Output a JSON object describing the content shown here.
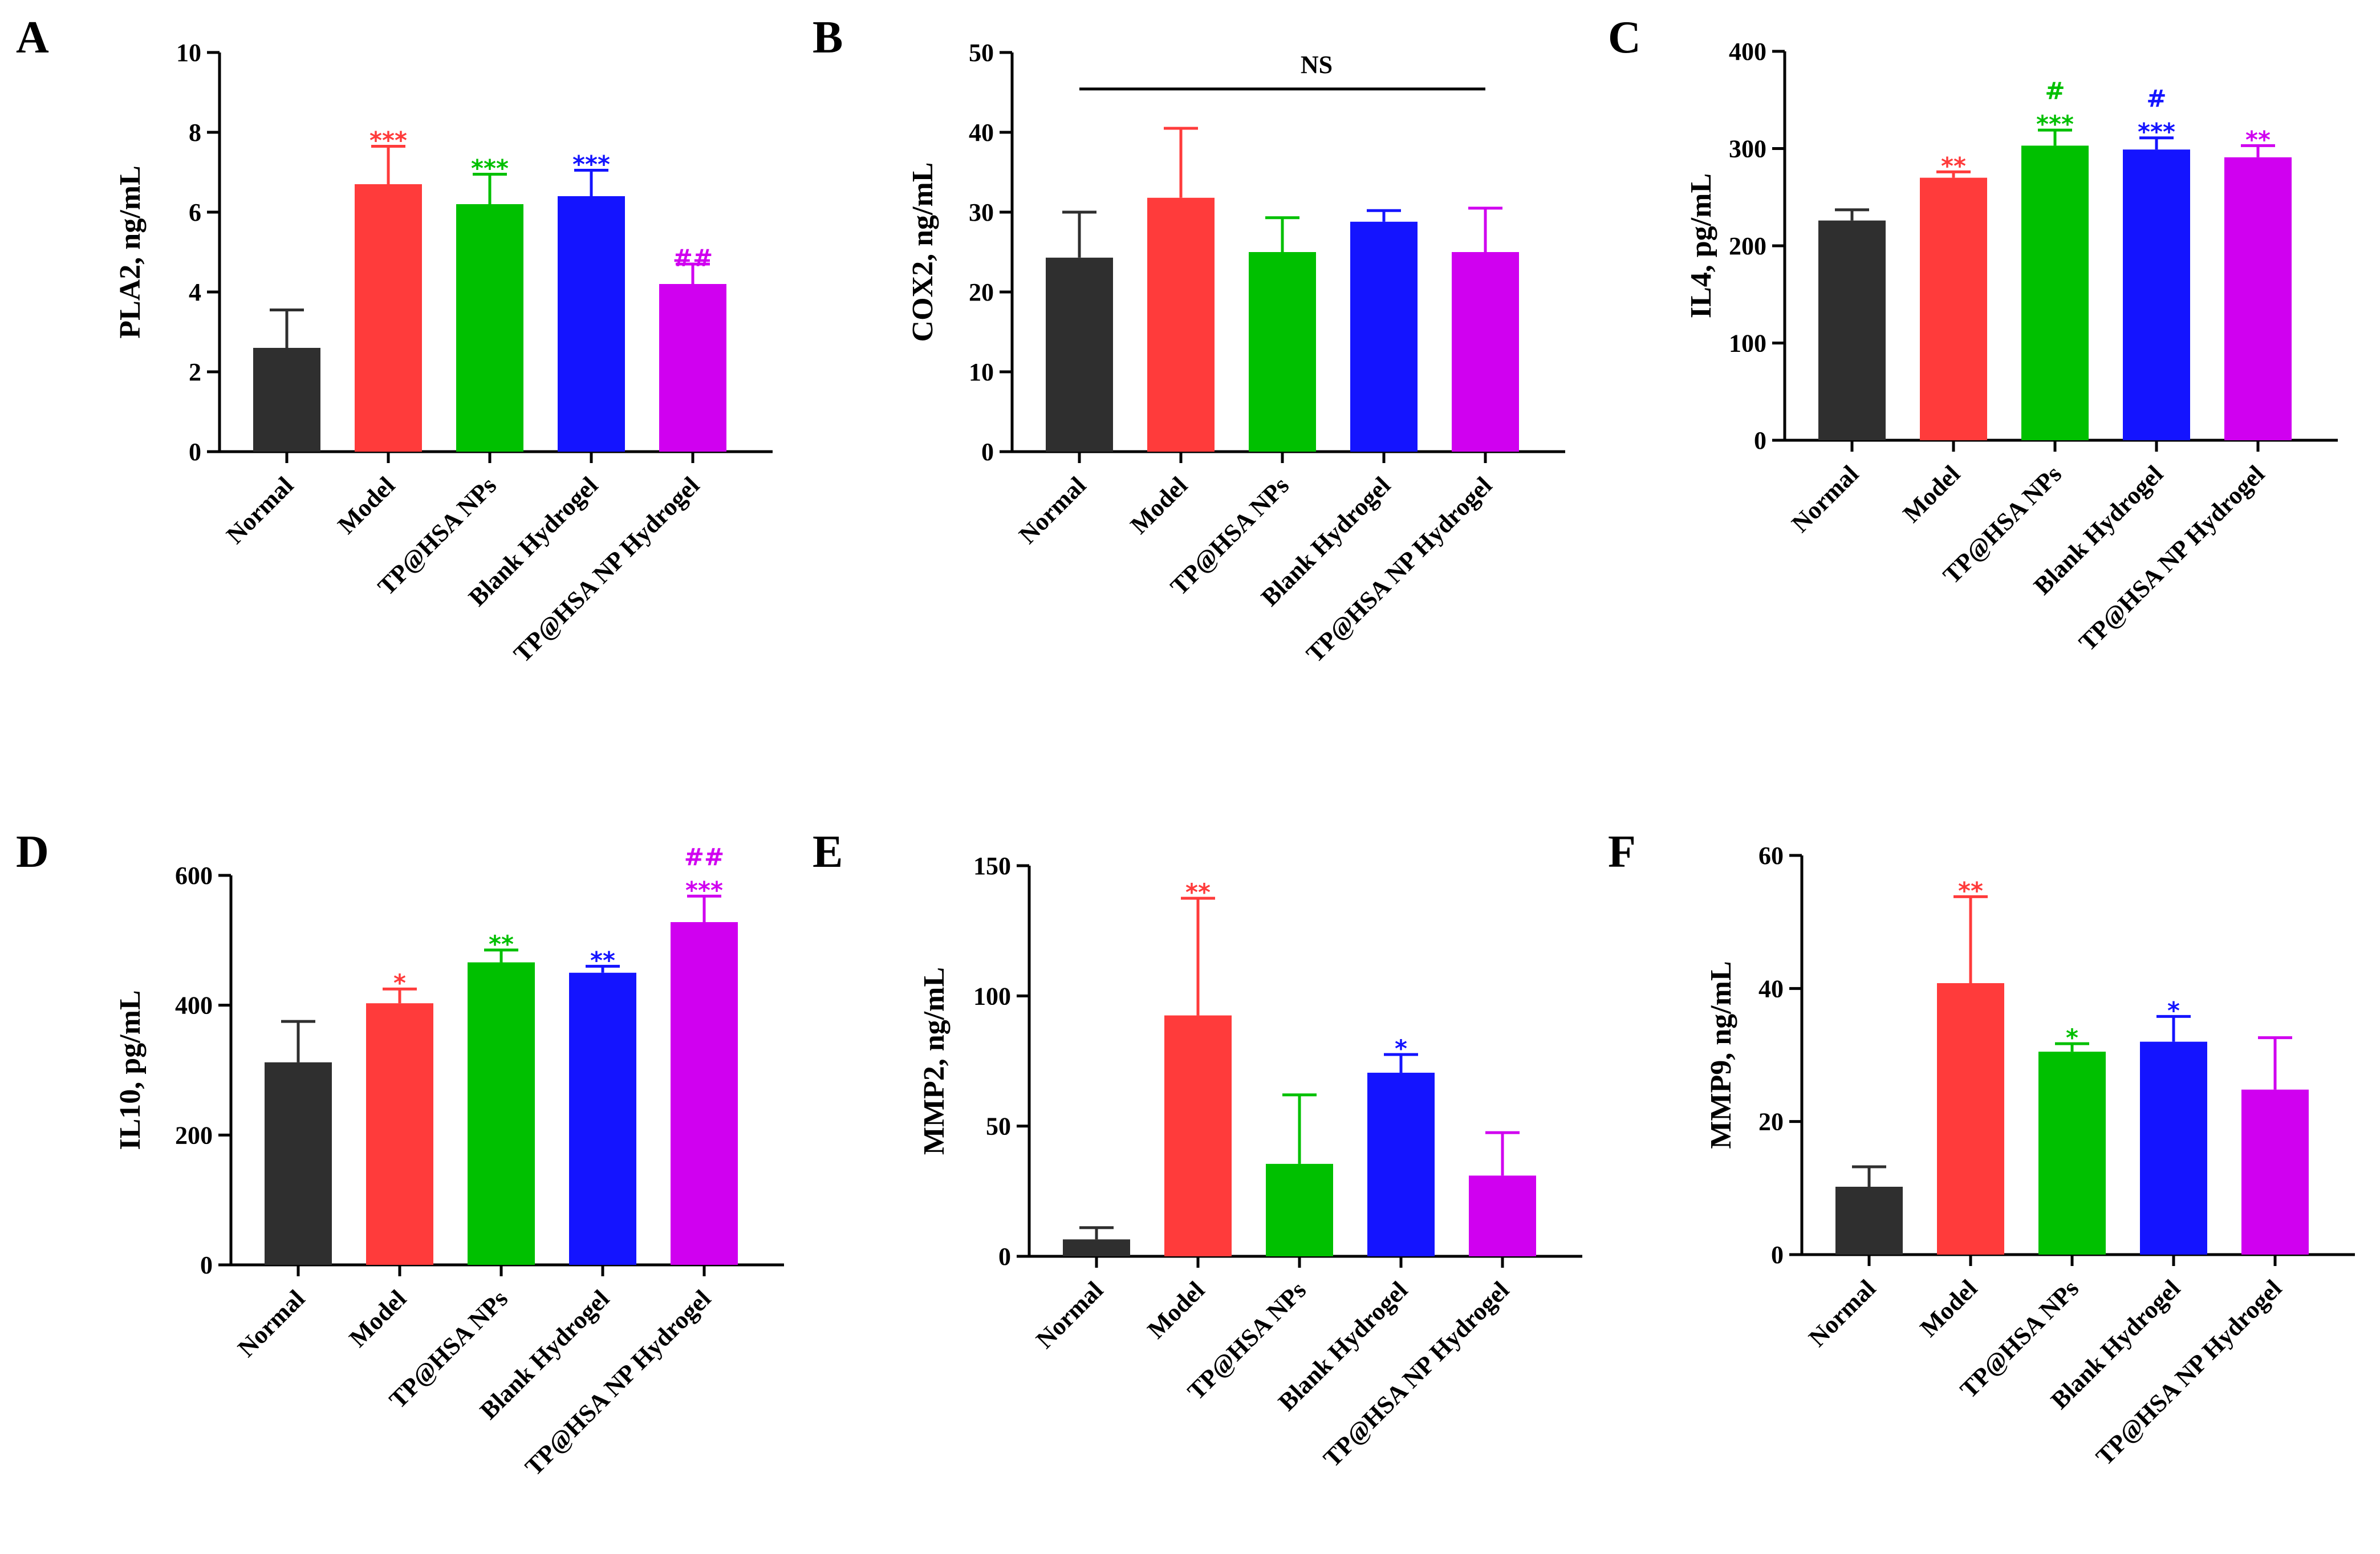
{
  "categories": [
    "Normal",
    "Model",
    "TP@HSA NPs",
    "Blank Hydrogel",
    "TP@HSA NP Hydrogel"
  ],
  "colors": [
    "#2f2f2f",
    "#ff3b3b",
    "#00c000",
    "#1414ff",
    "#d000f0"
  ],
  "chart_data": [
    {
      "type": "bar",
      "panel": "A",
      "ylabel": "PLA2, ng/mL",
      "ylim": [
        0,
        10
      ],
      "yticks": [
        "0",
        "2",
        "4",
        "6",
        "8",
        "10"
      ],
      "categories": [
        "Normal",
        "Model",
        "TP@HSA NPs",
        "Blank Hydrogel",
        "TP@HSA NP Hydrogel"
      ],
      "values": [
        2.6,
        6.7,
        6.2,
        6.4,
        4.2
      ],
      "errors": [
        0.95,
        0.95,
        0.75,
        0.65,
        0.5
      ],
      "annotations": [
        [
          "",
          ""
        ],
        [
          "***",
          ""
        ],
        [
          "***",
          ""
        ],
        [
          "***",
          ""
        ],
        [
          "##",
          ""
        ]
      ]
    },
    {
      "type": "bar",
      "panel": "B",
      "ylabel": "COX2, ng/mL",
      "ylim": [
        0,
        50
      ],
      "yticks": [
        "0",
        "10",
        "20",
        "30",
        "40",
        "50"
      ],
      "categories": [
        "Normal",
        "Model",
        "TP@HSA NPs",
        "Blank Hydrogel",
        "TP@HSA NP Hydrogel"
      ],
      "values": [
        24.3,
        31.8,
        25.0,
        28.8,
        25.0
      ],
      "errors": [
        5.7,
        8.7,
        4.3,
        1.4,
        5.5
      ],
      "annotations": [
        [
          "",
          ""
        ],
        [
          "",
          ""
        ],
        [
          "",
          ""
        ],
        [
          "",
          ""
        ],
        [
          "",
          ""
        ]
      ],
      "bracket_label": "NS"
    },
    {
      "type": "bar",
      "panel": "C",
      "ylabel": "IL4, pg/mL",
      "ylim": [
        0,
        400
      ],
      "yticks": [
        "0",
        "100",
        "200",
        "300",
        "400"
      ],
      "categories": [
        "Normal",
        "Model",
        "TP@HSA NPs",
        "Blank Hydrogel",
        "TP@HSA NP Hydrogel"
      ],
      "values": [
        226,
        270,
        303,
        299,
        291
      ],
      "errors": [
        11,
        6,
        16,
        12,
        12
      ],
      "annotations": [
        [
          "",
          ""
        ],
        [
          "**",
          ""
        ],
        [
          "***",
          "#"
        ],
        [
          "***",
          "#"
        ],
        [
          "**",
          ""
        ]
      ]
    },
    {
      "type": "bar",
      "panel": "D",
      "ylabel": "IL10, pg/mL",
      "ylim": [
        0,
        600
      ],
      "yticks": [
        "0",
        "200",
        "400",
        "600"
      ],
      "categories": [
        "Normal",
        "Model",
        "TP@HSA NPs",
        "Blank Hydrogel",
        "TP@HSA NP Hydrogel"
      ],
      "values": [
        312,
        403,
        466,
        450,
        528
      ],
      "errors": [
        63,
        22,
        19,
        10,
        40
      ],
      "annotations": [
        [
          "",
          ""
        ],
        [
          "*",
          ""
        ],
        [
          "**",
          ""
        ],
        [
          "**",
          ""
        ],
        [
          "***",
          "##"
        ]
      ]
    },
    {
      "type": "bar",
      "panel": "E",
      "ylabel": "MMP2, ng/mL",
      "ylim": [
        0,
        150
      ],
      "yticks": [
        "0",
        "50",
        "100",
        "150"
      ],
      "categories": [
        "Normal",
        "Model",
        "TP@HSA NPs",
        "Blank Hydrogel",
        "TP@HSA NP Hydrogel"
      ],
      "values": [
        6.5,
        92.5,
        35.5,
        70.5,
        31.0
      ],
      "errors": [
        4.5,
        45,
        26.5,
        7,
        16.5
      ],
      "annotations": [
        [
          "",
          ""
        ],
        [
          "**",
          ""
        ],
        [
          "",
          ""
        ],
        [
          "*",
          ""
        ],
        [
          "",
          ""
        ]
      ]
    },
    {
      "type": "bar",
      "panel": "F",
      "ylabel": "MMP9, ng/mL",
      "ylim": [
        0,
        60
      ],
      "yticks": [
        "0",
        "20",
        "40",
        "60"
      ],
      "categories": [
        "Normal",
        "Model",
        "TP@HSA NPs",
        "Blank Hydrogel",
        "TP@HSA NP Hydrogel"
      ],
      "values": [
        10.2,
        40.8,
        30.5,
        32.0,
        24.8
      ],
      "errors": [
        3.0,
        13.0,
        1.2,
        3.8,
        7.8
      ],
      "annotations": [
        [
          "",
          ""
        ],
        [
          "**",
          ""
        ],
        [
          "*",
          ""
        ],
        [
          "*",
          ""
        ],
        [
          "",
          ""
        ]
      ]
    }
  ]
}
